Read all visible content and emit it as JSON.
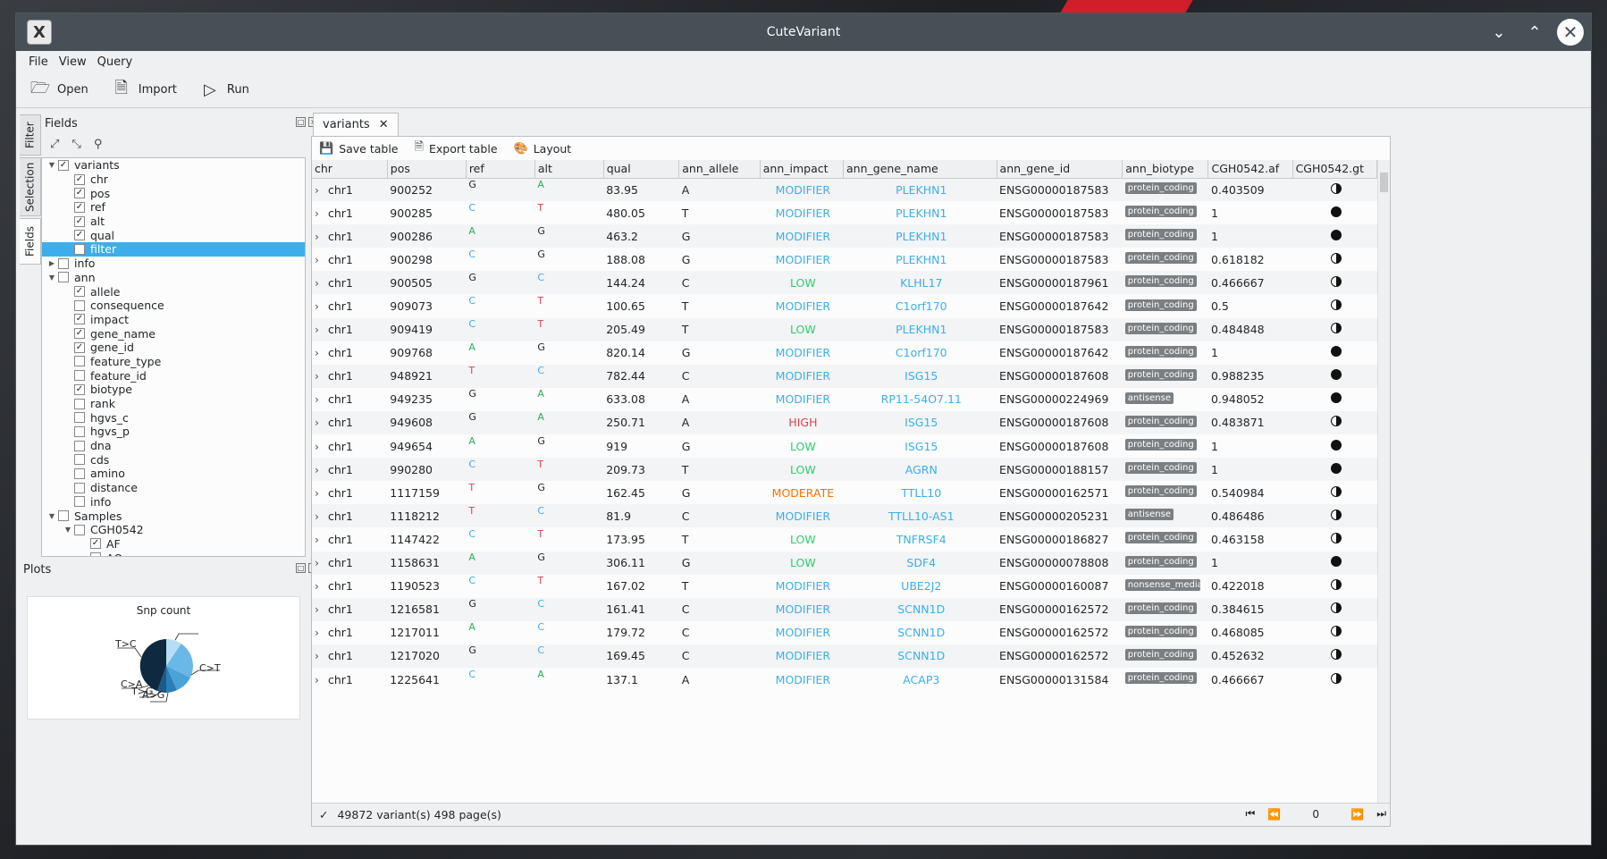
{
  "window": {
    "title": "CuteVariant",
    "app_icon_letter": "X"
  },
  "menu": [
    "File",
    "View",
    "Query"
  ],
  "toolbar": {
    "open": "Open",
    "import": "Import",
    "run": "Run"
  },
  "side_tabs": [
    "Filter",
    "Selection",
    "Fields"
  ],
  "fields_dock": {
    "title": "Fields",
    "tree": [
      {
        "label": "variants",
        "level": 0,
        "arrow": "open",
        "checked": true
      },
      {
        "label": "chr",
        "level": 1,
        "checked": true
      },
      {
        "label": "pos",
        "level": 1,
        "checked": true
      },
      {
        "label": "ref",
        "level": 1,
        "checked": true
      },
      {
        "label": "alt",
        "level": 1,
        "checked": true
      },
      {
        "label": "qual",
        "level": 1,
        "checked": true
      },
      {
        "label": "filter",
        "level": 1,
        "checked": false,
        "selected": true
      },
      {
        "label": "info",
        "level": 0,
        "arrow": "closed",
        "checked": false
      },
      {
        "label": "ann",
        "level": 0,
        "arrow": "open",
        "checked": false
      },
      {
        "label": "allele",
        "level": 1,
        "checked": true
      },
      {
        "label": "consequence",
        "level": 1,
        "checked": false
      },
      {
        "label": "impact",
        "level": 1,
        "checked": true
      },
      {
        "label": "gene_name",
        "level": 1,
        "checked": true
      },
      {
        "label": "gene_id",
        "level": 1,
        "checked": true
      },
      {
        "label": "feature_type",
        "level": 1,
        "checked": false
      },
      {
        "label": "feature_id",
        "level": 1,
        "checked": false
      },
      {
        "label": "biotype",
        "level": 1,
        "checked": true
      },
      {
        "label": "rank",
        "level": 1,
        "checked": false
      },
      {
        "label": "hgvs_c",
        "level": 1,
        "checked": false
      },
      {
        "label": "hgvs_p",
        "level": 1,
        "checked": false
      },
      {
        "label": "dna",
        "level": 1,
        "checked": false
      },
      {
        "label": "cds",
        "level": 1,
        "checked": false
      },
      {
        "label": "amino",
        "level": 1,
        "checked": false
      },
      {
        "label": "distance",
        "level": 1,
        "checked": false
      },
      {
        "label": "info",
        "level": 1,
        "checked": false
      },
      {
        "label": "Samples",
        "level": 0,
        "arrow": "open",
        "checked": false
      },
      {
        "label": "CGH0542",
        "level": 1,
        "arrow": "open",
        "checked": false
      },
      {
        "label": "AF",
        "level": 2,
        "checked": true
      },
      {
        "label": "AO",
        "level": 2,
        "checked": false
      }
    ]
  },
  "plots_dock": {
    "title": "Plots",
    "plot_title": "Snp count",
    "labels": [
      "T>C",
      "C>T",
      "C>A",
      "T>G",
      "A>G"
    ]
  },
  "tab": {
    "label": "variants"
  },
  "view_tools": {
    "save": "Save table",
    "export": "Export table",
    "layout": "Layout"
  },
  "columns": [
    "chr",
    "pos",
    "ref",
    "alt",
    "qual",
    "ann_allele",
    "ann_impact",
    "ann_gene_name",
    "ann_gene_id",
    "ann_biotype",
    "CGH0542.af",
    "CGH0542.gt"
  ],
  "rows": [
    [
      "chr1",
      "900252",
      "G",
      "A",
      "83.95",
      "A",
      "MODIFIER",
      "PLEKHN1",
      "ENSG00000187583",
      "protein_coding",
      "0.403509",
      "het"
    ],
    [
      "chr1",
      "900285",
      "C",
      "T",
      "480.05",
      "T",
      "MODIFIER",
      "PLEKHN1",
      "ENSG00000187583",
      "protein_coding",
      "1",
      "hom"
    ],
    [
      "chr1",
      "900286",
      "A",
      "G",
      "463.2",
      "G",
      "MODIFIER",
      "PLEKHN1",
      "ENSG00000187583",
      "protein_coding",
      "1",
      "hom"
    ],
    [
      "chr1",
      "900298",
      "C",
      "G",
      "188.08",
      "G",
      "MODIFIER",
      "PLEKHN1",
      "ENSG00000187583",
      "protein_coding",
      "0.618182",
      "het"
    ],
    [
      "chr1",
      "900505",
      "G",
      "C",
      "144.24",
      "C",
      "LOW",
      "KLHL17",
      "ENSG00000187961",
      "protein_coding",
      "0.466667",
      "het"
    ],
    [
      "chr1",
      "909073",
      "C",
      "T",
      "100.65",
      "T",
      "MODIFIER",
      "C1orf170",
      "ENSG00000187642",
      "protein_coding",
      "0.5",
      "het"
    ],
    [
      "chr1",
      "909419",
      "C",
      "T",
      "205.49",
      "T",
      "LOW",
      "PLEKHN1",
      "ENSG00000187583",
      "protein_coding",
      "0.484848",
      "het"
    ],
    [
      "chr1",
      "909768",
      "A",
      "G",
      "820.14",
      "G",
      "MODIFIER",
      "C1orf170",
      "ENSG00000187642",
      "protein_coding",
      "1",
      "hom"
    ],
    [
      "chr1",
      "948921",
      "T",
      "C",
      "782.44",
      "C",
      "MODIFIER",
      "ISG15",
      "ENSG00000187608",
      "protein_coding",
      "0.988235",
      "hom"
    ],
    [
      "chr1",
      "949235",
      "G",
      "A",
      "633.08",
      "A",
      "MODIFIER",
      "RP11-54O7.11",
      "ENSG00000224969",
      "antisense",
      "0.948052",
      "hom"
    ],
    [
      "chr1",
      "949608",
      "G",
      "A",
      "250.71",
      "A",
      "HIGH",
      "ISG15",
      "ENSG00000187608",
      "protein_coding",
      "0.483871",
      "het"
    ],
    [
      "chr1",
      "949654",
      "A",
      "G",
      "919",
      "G",
      "LOW",
      "ISG15",
      "ENSG00000187608",
      "protein_coding",
      "1",
      "hom"
    ],
    [
      "chr1",
      "990280",
      "C",
      "T",
      "209.73",
      "T",
      "LOW",
      "AGRN",
      "ENSG00000188157",
      "protein_coding",
      "1",
      "hom"
    ],
    [
      "chr1",
      "1117159",
      "T",
      "G",
      "162.45",
      "G",
      "MODERATE",
      "TTLL10",
      "ENSG00000162571",
      "protein_coding",
      "0.540984",
      "het"
    ],
    [
      "chr1",
      "1118212",
      "T",
      "C",
      "81.9",
      "C",
      "MODIFIER",
      "TTLL10-AS1",
      "ENSG00000205231",
      "antisense",
      "0.486486",
      "het"
    ],
    [
      "chr1",
      "1147422",
      "C",
      "T",
      "173.95",
      "T",
      "LOW",
      "TNFRSF4",
      "ENSG00000186827",
      "protein_coding",
      "0.463158",
      "het"
    ],
    [
      "chr1",
      "1158631",
      "A",
      "G",
      "306.11",
      "G",
      "LOW",
      "SDF4",
      "ENSG00000078808",
      "protein_coding",
      "1",
      "hom"
    ],
    [
      "chr1",
      "1190523",
      "C",
      "T",
      "167.02",
      "T",
      "MODIFIER",
      "UBE2J2",
      "ENSG00000160087",
      "nonsense_mediated",
      "0.422018",
      "het"
    ],
    [
      "chr1",
      "1216581",
      "G",
      "C",
      "161.41",
      "C",
      "MODIFIER",
      "SCNN1D",
      "ENSG00000162572",
      "protein_coding",
      "0.384615",
      "het"
    ],
    [
      "chr1",
      "1217011",
      "A",
      "C",
      "179.72",
      "C",
      "MODIFIER",
      "SCNN1D",
      "ENSG00000162572",
      "protein_coding",
      "0.468085",
      "het"
    ],
    [
      "chr1",
      "1217020",
      "G",
      "C",
      "169.45",
      "C",
      "MODIFIER",
      "SCNN1D",
      "ENSG00000162572",
      "protein_coding",
      "0.452632",
      "het"
    ],
    [
      "chr1",
      "1225641",
      "C",
      "A",
      "137.1",
      "A",
      "MODIFIER",
      "ACAP3",
      "ENSG00000131584",
      "protein_coding",
      "0.466667",
      "het"
    ]
  ],
  "status": {
    "text": "49872 variant(s) 498 page(s)",
    "page": "0"
  },
  "colors": {
    "accent": "#3daee9",
    "titlebar": "#475057"
  }
}
